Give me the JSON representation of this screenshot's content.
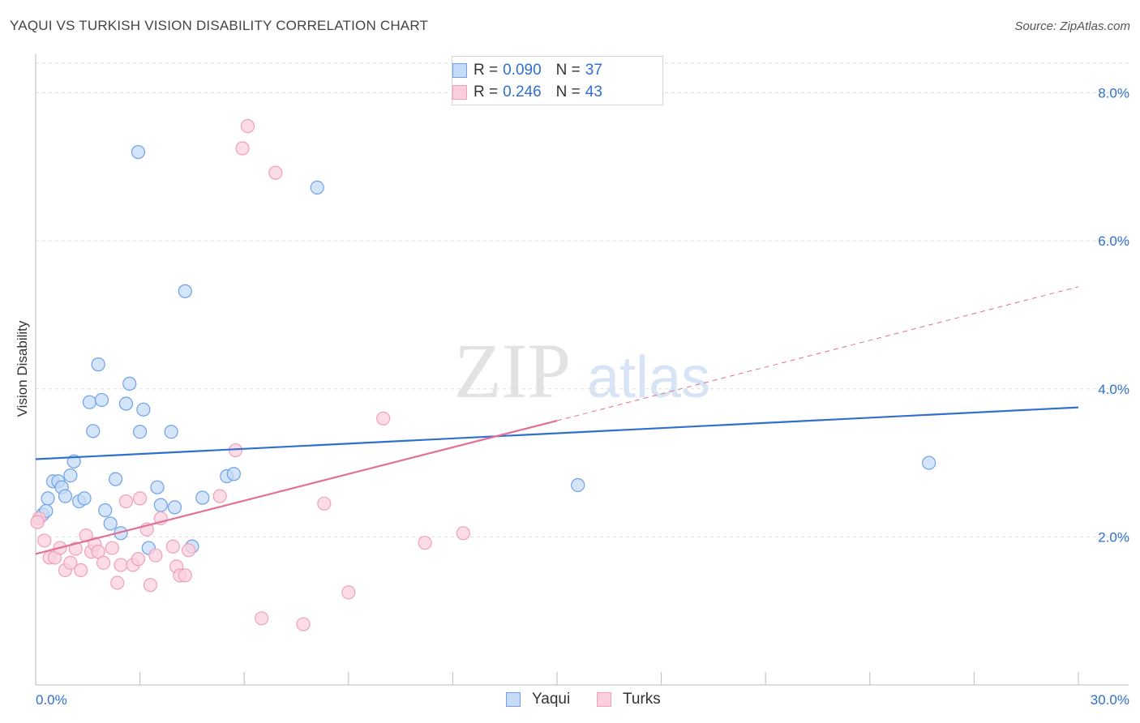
{
  "title": "YAQUI VS TURKISH VISION DISABILITY CORRELATION CHART",
  "source": "Source: ZipAtlas.com",
  "watermark": {
    "zip": "ZIP",
    "atlas": "atlas"
  },
  "legend": {
    "rows": [
      {
        "r_label": "R =",
        "r_value": "0.090",
        "n_label": "N =",
        "n_value": "37",
        "color": "#6fa0e8",
        "fill": "#c6dbf7"
      },
      {
        "r_label": "R =",
        "r_value": "0.246",
        "n_label": "N =",
        "n_value": "43",
        "color": "#f0a0b8",
        "fill": "#fbd0dc"
      }
    ]
  },
  "bottom_legend": [
    {
      "label": "Yaqui",
      "color": "#6fa0e8",
      "fill": "#c6dbf7"
    },
    {
      "label": "Turks",
      "color": "#f0a0b8",
      "fill": "#fbd0dc"
    }
  ],
  "chart_data": {
    "type": "scatter",
    "title": "YAQUI VS TURKISH VISION DISABILITY CORRELATION CHART",
    "xlabel": "",
    "ylabel": "Vision Disability",
    "xlim": [
      0,
      30
    ],
    "ylim": [
      0,
      8.4
    ],
    "x_tick_labels": [
      "0.0%",
      "30.0%"
    ],
    "y_ticks": [
      2,
      4,
      6,
      8
    ],
    "y_tick_labels": [
      "2.0%",
      "4.0%",
      "6.0%",
      "8.0%"
    ],
    "series": [
      {
        "name": "Yaqui",
        "color": "#6fa0e8",
        "fill": "#c6dbf7",
        "trend_color": "#2f6fd0",
        "trend": {
          "x0": 0,
          "y0": 3.05,
          "x1": 30,
          "y1": 3.75
        },
        "points": [
          [
            0.2,
            2.3
          ],
          [
            0.3,
            2.35
          ],
          [
            0.35,
            2.52
          ],
          [
            0.5,
            2.75
          ],
          [
            0.65,
            2.75
          ],
          [
            0.75,
            2.67
          ],
          [
            0.85,
            2.55
          ],
          [
            1.0,
            2.83
          ],
          [
            1.1,
            3.02
          ],
          [
            1.25,
            2.48
          ],
          [
            1.4,
            2.52
          ],
          [
            1.55,
            3.82
          ],
          [
            1.65,
            3.43
          ],
          [
            1.8,
            4.33
          ],
          [
            1.9,
            3.85
          ],
          [
            2.0,
            2.36
          ],
          [
            2.15,
            2.18
          ],
          [
            2.3,
            2.78
          ],
          [
            2.45,
            2.05
          ],
          [
            2.6,
            3.8
          ],
          [
            2.7,
            4.07
          ],
          [
            2.95,
            7.2
          ],
          [
            3.0,
            3.42
          ],
          [
            3.1,
            3.72
          ],
          [
            3.25,
            1.85
          ],
          [
            3.5,
            2.67
          ],
          [
            3.6,
            2.43
          ],
          [
            3.9,
            3.42
          ],
          [
            4.0,
            2.4
          ],
          [
            4.3,
            5.32
          ],
          [
            4.5,
            1.87
          ],
          [
            4.8,
            2.53
          ],
          [
            5.5,
            2.82
          ],
          [
            5.7,
            2.85
          ],
          [
            8.1,
            6.72
          ],
          [
            15.6,
            2.7
          ],
          [
            25.7,
            3.0
          ]
        ]
      },
      {
        "name": "Turks",
        "color": "#f0a0b8",
        "fill": "#fbd0dc",
        "trend_color": "#e07098",
        "trend": {
          "x0": 0,
          "y0": 1.77,
          "x1": 15.0,
          "y1": 3.57
        },
        "trend_dashed": {
          "x0": 15.0,
          "y0": 3.57,
          "x1": 30,
          "y1": 5.38
        },
        "points": [
          [
            0.1,
            2.25
          ],
          [
            0.25,
            1.95
          ],
          [
            0.4,
            1.72
          ],
          [
            0.55,
            1.72
          ],
          [
            0.7,
            1.85
          ],
          [
            0.85,
            1.55
          ],
          [
            1.0,
            1.65
          ],
          [
            1.15,
            1.84
          ],
          [
            1.3,
            1.55
          ],
          [
            1.45,
            2.02
          ],
          [
            1.6,
            1.8
          ],
          [
            1.7,
            1.9
          ],
          [
            1.8,
            1.8
          ],
          [
            1.95,
            1.65
          ],
          [
            2.2,
            1.85
          ],
          [
            2.35,
            1.38
          ],
          [
            2.45,
            1.62
          ],
          [
            2.6,
            2.48
          ],
          [
            2.8,
            1.62
          ],
          [
            2.95,
            1.7
          ],
          [
            3.0,
            2.52
          ],
          [
            3.2,
            2.1
          ],
          [
            3.3,
            1.35
          ],
          [
            3.45,
            1.75
          ],
          [
            3.6,
            2.25
          ],
          [
            3.95,
            1.87
          ],
          [
            4.05,
            1.6
          ],
          [
            4.15,
            1.48
          ],
          [
            4.3,
            1.48
          ],
          [
            4.4,
            1.82
          ],
          [
            5.3,
            2.55
          ],
          [
            5.75,
            3.17
          ],
          [
            5.95,
            7.25
          ],
          [
            6.1,
            7.55
          ],
          [
            6.5,
            0.9
          ],
          [
            6.9,
            6.92
          ],
          [
            7.7,
            0.82
          ],
          [
            8.3,
            2.45
          ],
          [
            9.0,
            1.25
          ],
          [
            10.0,
            3.6
          ],
          [
            11.2,
            1.92
          ],
          [
            12.3,
            2.05
          ],
          [
            0.05,
            2.2
          ]
        ]
      }
    ]
  }
}
